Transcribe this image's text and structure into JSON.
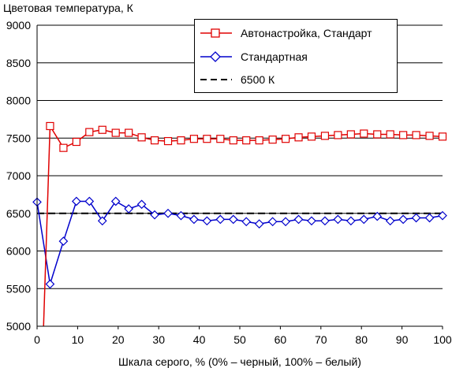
{
  "chart_data": {
    "type": "line",
    "title": "Цветовая температура, К",
    "xlabel": "Шкала серого, % (0% – черный, 100% – белый)",
    "ylabel": "",
    "xlim": [
      0,
      100
    ],
    "ylim": [
      5000,
      9000
    ],
    "x_ticks": [
      "0",
      "10",
      "20",
      "30",
      "40",
      "50",
      "60",
      "70",
      "80",
      "90",
      "100"
    ],
    "y_ticks": [
      "9000",
      "8500",
      "8000",
      "7500",
      "7000",
      "6500",
      "6000",
      "5500",
      "5000"
    ],
    "grid": "horizontal",
    "legend_position": "top-right",
    "x": [
      0,
      3.2,
      6.5,
      9.7,
      12.9,
      16.1,
      19.4,
      22.6,
      25.8,
      29.0,
      32.3,
      35.5,
      38.7,
      41.9,
      45.2,
      48.4,
      51.6,
      54.8,
      58.1,
      61.3,
      64.5,
      67.7,
      71.0,
      74.2,
      77.4,
      80.6,
      83.9,
      87.1,
      90.3,
      93.5,
      96.8,
      100
    ],
    "series": [
      {
        "name": "Автонастройка, Стандарт",
        "color": "#e00000",
        "marker": "square",
        "values": [
          null,
          7660,
          7370,
          7450,
          7580,
          7610,
          7570,
          7570,
          7510,
          7470,
          7460,
          7470,
          7490,
          7490,
          7490,
          7470,
          7470,
          7470,
          7480,
          7490,
          7510,
          7520,
          7530,
          7540,
          7550,
          7560,
          7550,
          7550,
          7540,
          7540,
          7530,
          7520
        ],
        "partial_segment": {
          "x": [
            1.6,
            3.2
          ],
          "values": [
            4950,
            7660
          ]
        }
      },
      {
        "name": "Стандартная",
        "color": "#0000cc",
        "marker": "diamond",
        "values": [
          6650,
          5560,
          6130,
          6660,
          6660,
          6400,
          6660,
          6560,
          6620,
          6480,
          6500,
          6470,
          6420,
          6400,
          6420,
          6420,
          6390,
          6360,
          6390,
          6390,
          6420,
          6400,
          6400,
          6420,
          6400,
          6420,
          6460,
          6400,
          6420,
          6440,
          6440,
          6470
        ]
      },
      {
        "name": "6500 К",
        "color": "#000000",
        "dashed": true,
        "values_const": 6500
      }
    ]
  }
}
